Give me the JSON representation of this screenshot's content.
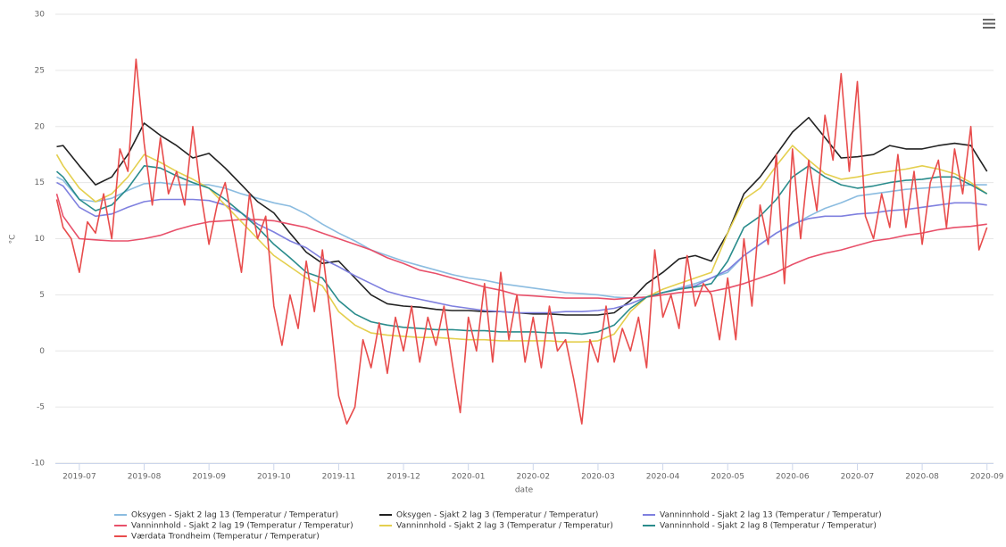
{
  "chart_data": {
    "type": "line",
    "y_label": "°C",
    "x_label": "date",
    "ylim": [
      -10,
      30
    ],
    "yticks": [
      -10,
      -5,
      0,
      5,
      10,
      15,
      20,
      25,
      30
    ],
    "xlim": [
      6.63,
      21.1
    ],
    "xticks": [
      {
        "value": 7,
        "label": "2019-07"
      },
      {
        "value": 8,
        "label": "2019-08"
      },
      {
        "value": 9,
        "label": "2019-09"
      },
      {
        "value": 10,
        "label": "2019-10"
      },
      {
        "value": 11,
        "label": "2019-11"
      },
      {
        "value": 12,
        "label": "2019-12"
      },
      {
        "value": 13,
        "label": "2020-01"
      },
      {
        "value": 14,
        "label": "2020-02"
      },
      {
        "value": 15,
        "label": "2020-03"
      },
      {
        "value": 16,
        "label": "2020-04"
      },
      {
        "value": 17,
        "label": "2020-05"
      },
      {
        "value": 18,
        "label": "2020-06"
      },
      {
        "value": 19,
        "label": "2020-07"
      },
      {
        "value": 20,
        "label": "2020-08"
      },
      {
        "value": 21,
        "label": "2020-09"
      }
    ],
    "grid": true,
    "legend": "bottom",
    "x": [
      6.65,
      6.75,
      7,
      7.25,
      7.5,
      7.75,
      8,
      8.25,
      8.5,
      8.75,
      9,
      9.25,
      9.5,
      9.75,
      10,
      10.25,
      10.5,
      10.75,
      11,
      11.25,
      11.5,
      11.75,
      12,
      12.25,
      12.5,
      12.75,
      13,
      13.25,
      13.5,
      13.75,
      14,
      14.25,
      14.5,
      14.75,
      15,
      15.25,
      15.5,
      15.75,
      16,
      16.25,
      16.5,
      16.75,
      17,
      17.25,
      17.5,
      17.75,
      18,
      18.25,
      18.5,
      18.75,
      19,
      19.25,
      19.5,
      19.75,
      20,
      20.25,
      20.5,
      20.75,
      21
    ],
    "series": [
      {
        "name": "Oksygen - Sjakt 2 lag 13 (Temperatur / Temperatur)",
        "color": "#8bbce0",
        "values": [
          15.5,
          15.2,
          13.5,
          13.3,
          13.6,
          14.3,
          14.9,
          15,
          14.8,
          14.8,
          14.8,
          14.5,
          14,
          13.6,
          13.2,
          12.9,
          12.2,
          11.3,
          10.5,
          9.8,
          9,
          8.5,
          8,
          7.6,
          7.2,
          6.8,
          6.5,
          6.3,
          6,
          5.8,
          5.6,
          5.4,
          5.2,
          5.1,
          5,
          4.8,
          4.7,
          4.8,
          5.2,
          5.6,
          6,
          6.5,
          7,
          8.5,
          9.5,
          10.5,
          11.2,
          12,
          12.7,
          13.2,
          13.8,
          14,
          14.2,
          14.4,
          14.5,
          14.6,
          14.7,
          14.8,
          14.8
        ]
      },
      {
        "name": "Oksygen - Sjakt 2 lag 3 (Temperatur / Temperatur)",
        "color": "#222222",
        "values": [
          18.2,
          18.3,
          16.5,
          14.8,
          15.5,
          17.5,
          20.3,
          19.2,
          18.3,
          17.2,
          17.6,
          16.3,
          14.8,
          13.3,
          12.3,
          10.5,
          8.8,
          7.8,
          8,
          6.5,
          5,
          4.2,
          4,
          3.9,
          3.7,
          3.6,
          3.6,
          3.5,
          3.5,
          3.4,
          3.3,
          3.3,
          3.2,
          3.2,
          3.2,
          3.4,
          4.5,
          6,
          7,
          8.2,
          8.5,
          8,
          10.5,
          14,
          15.5,
          17.5,
          19.5,
          20.8,
          19,
          17.2,
          17.3,
          17.5,
          18.3,
          18,
          18,
          18.3,
          18.5,
          18.3,
          16
        ]
      },
      {
        "name": "Vanninnhold - Sjakt 2 lag 13 (Temperatur / Temperatur)",
        "color": "#7f80df",
        "values": [
          15,
          14.7,
          12.8,
          12,
          12.2,
          12.8,
          13.3,
          13.5,
          13.5,
          13.5,
          13.4,
          13,
          12.3,
          11.3,
          10.6,
          9.8,
          9.2,
          8.2,
          7.5,
          6.7,
          6,
          5.3,
          4.9,
          4.6,
          4.3,
          4,
          3.8,
          3.6,
          3.5,
          3.4,
          3.4,
          3.4,
          3.5,
          3.5,
          3.6,
          3.8,
          4.2,
          4.8,
          5.2,
          5.5,
          5.8,
          6.5,
          7.2,
          8.5,
          9.5,
          10.5,
          11.3,
          11.8,
          12,
          12,
          12.2,
          12.3,
          12.5,
          12.6,
          12.8,
          13,
          13.2,
          13.2,
          13
        ]
      },
      {
        "name": "Vanninnhold - Sjakt 2 lag 19 (Temperatur / Temperatur)",
        "color": "#e8506a",
        "values": [
          14,
          12,
          10,
          9.9,
          9.8,
          9.8,
          10,
          10.3,
          10.8,
          11.2,
          11.5,
          11.6,
          11.7,
          11.7,
          11.6,
          11.3,
          11,
          10.5,
          10,
          9.5,
          9,
          8.3,
          7.8,
          7.2,
          6.9,
          6.5,
          6.1,
          5.7,
          5.4,
          5,
          4.9,
          4.8,
          4.7,
          4.7,
          4.7,
          4.6,
          4.7,
          4.8,
          5,
          5.2,
          5.3,
          5.3,
          5.6,
          6,
          6.5,
          7,
          7.7,
          8.3,
          8.7,
          9,
          9.4,
          9.8,
          10,
          10.3,
          10.5,
          10.8,
          11,
          11.1,
          11.3
        ]
      },
      {
        "name": "Vanninnhold - Sjakt 2 lag 3 (Temperatur / Temperatur)",
        "color": "#e4cf4e",
        "values": [
          17.5,
          16.5,
          14.5,
          13.3,
          14,
          15.5,
          17.5,
          16.8,
          16,
          15.3,
          14.5,
          13,
          11.5,
          10,
          8.5,
          7.5,
          6.5,
          5.8,
          3.5,
          2.3,
          1.6,
          1.4,
          1.3,
          1.2,
          1.2,
          1.1,
          1,
          1,
          0.9,
          0.9,
          0.9,
          0.9,
          0.8,
          0.8,
          0.9,
          1.5,
          3.5,
          4.8,
          5.5,
          6,
          6.5,
          7,
          10.5,
          13.5,
          14.5,
          16.5,
          18.3,
          17,
          15.8,
          15.3,
          15.5,
          15.8,
          16,
          16.2,
          16.5,
          16.2,
          15.8,
          15,
          14
        ]
      },
      {
        "name": "Vanninnhold - Sjakt 2 lag 8 (Temperatur / Temperatur)",
        "color": "#2a8c8c",
        "values": [
          16,
          15.5,
          13.5,
          12.5,
          13,
          14.5,
          16.5,
          16.3,
          15.6,
          15,
          14.5,
          13.5,
          12.3,
          11,
          9.5,
          8.3,
          7,
          6.5,
          4.5,
          3.3,
          2.6,
          2.3,
          2.1,
          2,
          1.9,
          1.9,
          1.8,
          1.8,
          1.7,
          1.7,
          1.7,
          1.6,
          1.6,
          1.5,
          1.7,
          2.3,
          3.8,
          4.8,
          5.2,
          5.5,
          5.7,
          6,
          8,
          11,
          12,
          13.5,
          15.5,
          16.5,
          15.5,
          14.8,
          14.5,
          14.7,
          15,
          15.2,
          15.3,
          15.5,
          15.5,
          14.8,
          14
        ]
      },
      {
        "name": "Værdata Trondheim (Temperatur / Temperatur)",
        "color": "#e84c4c",
        "x": [
          6.65,
          6.75,
          6.875,
          7,
          7.125,
          7.25,
          7.375,
          7.5,
          7.625,
          7.75,
          7.875,
          8,
          8.125,
          8.25,
          8.375,
          8.5,
          8.625,
          8.75,
          8.875,
          9,
          9.125,
          9.25,
          9.375,
          9.5,
          9.625,
          9.75,
          9.875,
          10,
          10.125,
          10.25,
          10.375,
          10.5,
          10.625,
          10.75,
          10.875,
          11,
          11.125,
          11.25,
          11.375,
          11.5,
          11.625,
          11.75,
          11.875,
          12,
          12.125,
          12.25,
          12.375,
          12.5,
          12.625,
          12.75,
          12.875,
          13,
          13.125,
          13.25,
          13.375,
          13.5,
          13.625,
          13.75,
          13.875,
          14,
          14.125,
          14.25,
          14.375,
          14.5,
          14.625,
          14.75,
          14.875,
          15,
          15.125,
          15.25,
          15.375,
          15.5,
          15.625,
          15.75,
          15.875,
          16,
          16.125,
          16.25,
          16.375,
          16.5,
          16.625,
          16.75,
          16.875,
          17,
          17.125,
          17.25,
          17.375,
          17.5,
          17.625,
          17.75,
          17.875,
          18,
          18.125,
          18.25,
          18.375,
          18.5,
          18.625,
          18.75,
          18.875,
          19,
          19.125,
          19.25,
          19.375,
          19.5,
          19.625,
          19.75,
          19.875,
          20,
          20.125,
          20.25,
          20.375,
          20.5,
          20.625,
          20.75,
          20.875,
          21
        ],
        "values": [
          13.5,
          11,
          10,
          7,
          11.5,
          10.5,
          14,
          10,
          18,
          16,
          26,
          18.5,
          13,
          19,
          14,
          16,
          13,
          20,
          14,
          9.5,
          13,
          15,
          11,
          7,
          14,
          10,
          12,
          4,
          0.5,
          5,
          2,
          8,
          3.5,
          9,
          3,
          -4,
          -6.5,
          -5,
          1,
          -1.5,
          2.5,
          -2,
          3,
          0,
          4,
          -1,
          3,
          0.5,
          4,
          -1,
          -5.5,
          3,
          0,
          6,
          -1,
          7,
          1,
          5,
          -1,
          3,
          -1.5,
          4,
          0,
          1,
          -2.5,
          -6.5,
          1,
          -1,
          4,
          -1,
          2,
          0,
          3,
          -1.5,
          9,
          3,
          5,
          2,
          8.5,
          4,
          6,
          5,
          1,
          6.5,
          1,
          10,
          4,
          13,
          9.5,
          17.5,
          6,
          18,
          10,
          17,
          12.5,
          21,
          17,
          24.7,
          16,
          24,
          12,
          10,
          14,
          11,
          17.5,
          11,
          16,
          9.5,
          15,
          17,
          11,
          18,
          14,
          20,
          9,
          11
        ]
      }
    ]
  }
}
